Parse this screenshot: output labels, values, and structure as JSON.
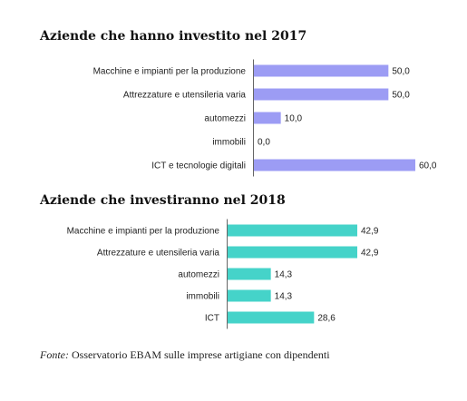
{
  "colors": {
    "chart1_bar": "#9c9cf4",
    "chart2_bar": "#45d3c9"
  },
  "source": {
    "prefix": "Fonte:",
    "text": " Osservatorio EBAM sulle imprese artigiane con dipendenti"
  },
  "chart_data": [
    {
      "type": "bar",
      "orientation": "horizontal",
      "title": "Aziende che hanno investito nel 2017",
      "categories": [
        "Macchine e impianti per la produzione",
        "Attrezzature e utensileria varia",
        "automezzi",
        "immobili",
        "ICT e tecnologie digitali"
      ],
      "values": [
        50.0,
        50.0,
        10.0,
        0.0,
        60.0
      ],
      "value_labels": [
        "50,0",
        "50,0",
        "10,0",
        "0,0",
        "60,0"
      ],
      "xlim": [
        0,
        60
      ],
      "grid": false
    },
    {
      "type": "bar",
      "orientation": "horizontal",
      "title": "Aziende che investiranno nel 2018",
      "categories": [
        "Macchine e impianti per la produzione",
        "Attrezzature e utensileria varia",
        "automezzi",
        "immobili",
        "ICT"
      ],
      "values": [
        42.9,
        42.9,
        14.3,
        14.3,
        28.6
      ],
      "value_labels": [
        "42,9",
        "42,9",
        "14,3",
        "14,3",
        "28,6"
      ],
      "xlim": [
        0,
        42.9
      ],
      "grid": false
    }
  ]
}
